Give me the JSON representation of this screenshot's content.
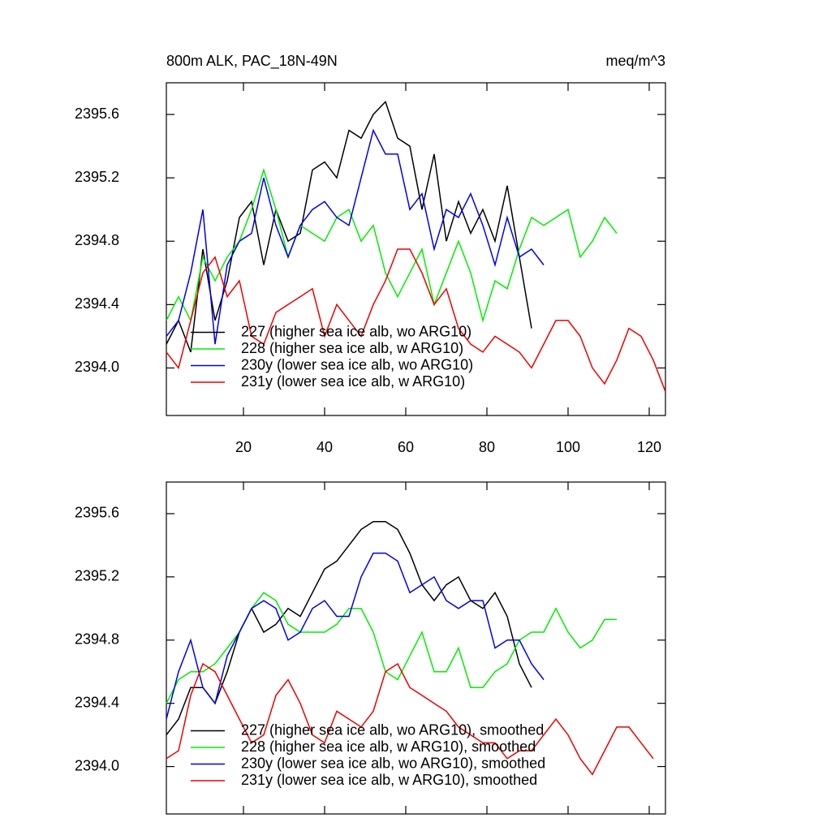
{
  "chart_data": [
    {
      "type": "line",
      "title": "800m ALK, PAC_18N-49N",
      "units": "meq/m^3",
      "x": [
        1,
        4,
        7,
        10,
        13,
        16,
        19,
        22,
        25,
        28,
        31,
        34,
        37,
        40,
        43,
        46,
        49,
        52,
        55,
        58,
        61,
        64,
        67,
        70,
        73,
        76,
        79,
        82,
        85,
        88,
        91,
        94,
        97,
        100,
        103,
        106,
        109,
        112,
        115,
        118,
        121,
        124
      ],
      "xlim": [
        1,
        124
      ],
      "ylim": [
        2393.7,
        2395.8
      ],
      "xticks": [
        20,
        40,
        60,
        80,
        100,
        120
      ],
      "xtick_labels": true,
      "yticks": [
        {
          "value": 2394,
          "label": "2394.0"
        },
        2394.4,
        2394.8,
        2395.2,
        2395.6
      ],
      "legend": "lower left",
      "series": [
        {
          "name": "227 (higher sea ice alb, wo ARG10)",
          "color": "#000000",
          "values": [
            2394.15,
            2394.3,
            2394.1,
            2394.75,
            2394.3,
            2394.55,
            2394.95,
            2395.05,
            2394.65,
            2395.0,
            2394.8,
            2394.85,
            2395.25,
            2395.3,
            2395.2,
            2395.5,
            2395.45,
            2395.6,
            2395.68,
            2395.45,
            2395.4,
            2395.0,
            2395.35,
            2394.8,
            2395.05,
            2394.85,
            2395.0,
            2394.8,
            2395.15,
            2394.7,
            2394.25,
            null,
            null,
            null,
            null,
            null,
            null,
            null,
            null,
            null,
            null,
            null
          ]
        },
        {
          "name": "228 (higher sea ice alb, w ARG10)",
          "color": "#00ee00",
          "values": [
            2394.3,
            2394.45,
            2394.3,
            2394.7,
            2394.55,
            2394.7,
            2394.8,
            2395.0,
            2395.25,
            2395.0,
            2394.7,
            2394.9,
            2394.85,
            2394.8,
            2394.95,
            2395.0,
            2394.8,
            2394.9,
            2394.6,
            2394.45,
            2394.6,
            2394.75,
            2394.4,
            2394.6,
            2394.8,
            2394.6,
            2394.3,
            2394.55,
            2394.5,
            2394.75,
            2394.95,
            2394.9,
            2394.95,
            2395.0,
            2394.7,
            2394.8,
            2394.95,
            2394.85,
            null,
            null,
            null,
            null
          ]
        },
        {
          "name": "230y (lower sea ice alb, wo ARG10)",
          "color": "#0000ee",
          "values": [
            2394.2,
            2394.3,
            2394.6,
            2395.0,
            2394.15,
            2394.65,
            2394.8,
            2394.85,
            2395.2,
            2394.9,
            2394.7,
            2394.9,
            2395.0,
            2395.05,
            2394.95,
            2394.9,
            2395.2,
            2395.5,
            2395.35,
            2395.35,
            2395.0,
            2395.1,
            2394.75,
            2395.0,
            2394.95,
            2395.1,
            2394.9,
            2394.65,
            2394.95,
            2394.7,
            2394.75,
            2394.65,
            null,
            null,
            null,
            null,
            null,
            null,
            null,
            null,
            null,
            null
          ]
        },
        {
          "name": "231y (lower sea ice alb, w ARG10)",
          "color": "#ee0000",
          "values": [
            2394.1,
            2394.0,
            2394.3,
            2394.6,
            2394.7,
            2394.45,
            2394.55,
            2394.2,
            2394.15,
            2394.35,
            2394.4,
            2394.45,
            2394.5,
            2394.2,
            2394.4,
            2394.3,
            2394.2,
            2394.4,
            2394.55,
            2394.75,
            2394.75,
            2394.6,
            2394.4,
            2394.5,
            2394.25,
            2394.15,
            2394.1,
            2394.2,
            2394.15,
            2394.1,
            2394.0,
            2394.15,
            2394.3,
            2394.3,
            2394.2,
            2394.0,
            2393.9,
            2394.05,
            2394.25,
            2394.2,
            2394.05,
            2393.85
          ]
        }
      ]
    },
    {
      "type": "line",
      "x": [
        1,
        4,
        7,
        10,
        13,
        16,
        19,
        22,
        25,
        28,
        31,
        34,
        37,
        40,
        43,
        46,
        49,
        52,
        55,
        58,
        61,
        64,
        67,
        70,
        73,
        76,
        79,
        82,
        85,
        88,
        91,
        94,
        97,
        100,
        103,
        106,
        109,
        112,
        115,
        118,
        121,
        124
      ],
      "xlim": [
        1,
        124
      ],
      "ylim": [
        2393.7,
        2395.8
      ],
      "xticks": [
        20,
        40,
        60,
        80,
        100,
        120
      ],
      "xtick_labels": false,
      "yticks": [
        {
          "value": 2394,
          "label": "2394.0"
        },
        2394.4,
        2394.8,
        2395.2,
        2395.6
      ],
      "legend": "lower left",
      "series": [
        {
          "name": "227 (higher sea ice alb, wo ARG10), smoothed",
          "color": "#000000",
          "values": [
            2394.2,
            2394.3,
            2394.5,
            2394.5,
            2394.4,
            2394.6,
            2394.85,
            2395.0,
            2394.85,
            2394.9,
            2395.0,
            2394.95,
            2395.1,
            2395.25,
            2395.3,
            2395.4,
            2395.5,
            2395.55,
            2395.55,
            2395.5,
            2395.35,
            2395.15,
            2395.05,
            2395.15,
            2395.2,
            2395.05,
            2395.0,
            2395.1,
            2394.95,
            2394.65,
            2394.5,
            null,
            null,
            null,
            null,
            null,
            null,
            null,
            null,
            null,
            null,
            null
          ]
        },
        {
          "name": "228 (higher sea ice alb, w ARG10), smoothed",
          "color": "#00ee00",
          "values": [
            2394.4,
            2394.55,
            2394.6,
            2394.6,
            2394.65,
            2394.75,
            2394.85,
            2395.0,
            2395.1,
            2395.05,
            2394.9,
            2394.85,
            2394.85,
            2394.85,
            2394.9,
            2395.0,
            2395.0,
            2394.85,
            2394.6,
            2394.55,
            2394.7,
            2394.85,
            2394.6,
            2394.6,
            2394.75,
            2394.5,
            2394.5,
            2394.6,
            2394.65,
            2394.8,
            2394.85,
            2394.85,
            2395.0,
            2394.85,
            2394.75,
            2394.8,
            2394.93,
            2394.93,
            null,
            null,
            null,
            null
          ]
        },
        {
          "name": "230y (lower sea ice alb, wo ARG10), smoothed",
          "color": "#0000ee",
          "values": [
            2394.3,
            2394.6,
            2394.8,
            2394.5,
            2394.4,
            2394.7,
            2394.85,
            2395.0,
            2395.05,
            2395.0,
            2394.8,
            2394.85,
            2395.0,
            2395.05,
            2394.95,
            2394.95,
            2395.2,
            2395.35,
            2395.35,
            2395.3,
            2395.1,
            2395.15,
            2395.2,
            2395.05,
            2395.0,
            2395.05,
            2395.05,
            2394.75,
            2394.8,
            2394.8,
            2394.65,
            2394.55,
            null,
            null,
            null,
            null,
            null,
            null,
            null,
            null,
            null,
            null
          ]
        },
        {
          "name": "231y (lower sea ice alb, w ARG10), smoothed",
          "color": "#ee0000",
          "values": [
            2394.05,
            2394.1,
            2394.45,
            2394.65,
            2394.6,
            2394.45,
            2394.3,
            2394.15,
            2394.2,
            2394.45,
            2394.55,
            2394.4,
            2394.2,
            2394.15,
            2394.35,
            2394.3,
            2394.25,
            2394.35,
            2394.6,
            2394.65,
            2394.5,
            2394.45,
            2394.4,
            2394.35,
            2394.25,
            2394.2,
            2394.15,
            2394.15,
            2394.05,
            2394.1,
            2394.1,
            2394.2,
            2394.3,
            2394.2,
            2394.05,
            2393.95,
            2394.1,
            2394.25,
            2394.25,
            2394.15,
            2394.05,
            null
          ]
        }
      ]
    }
  ]
}
